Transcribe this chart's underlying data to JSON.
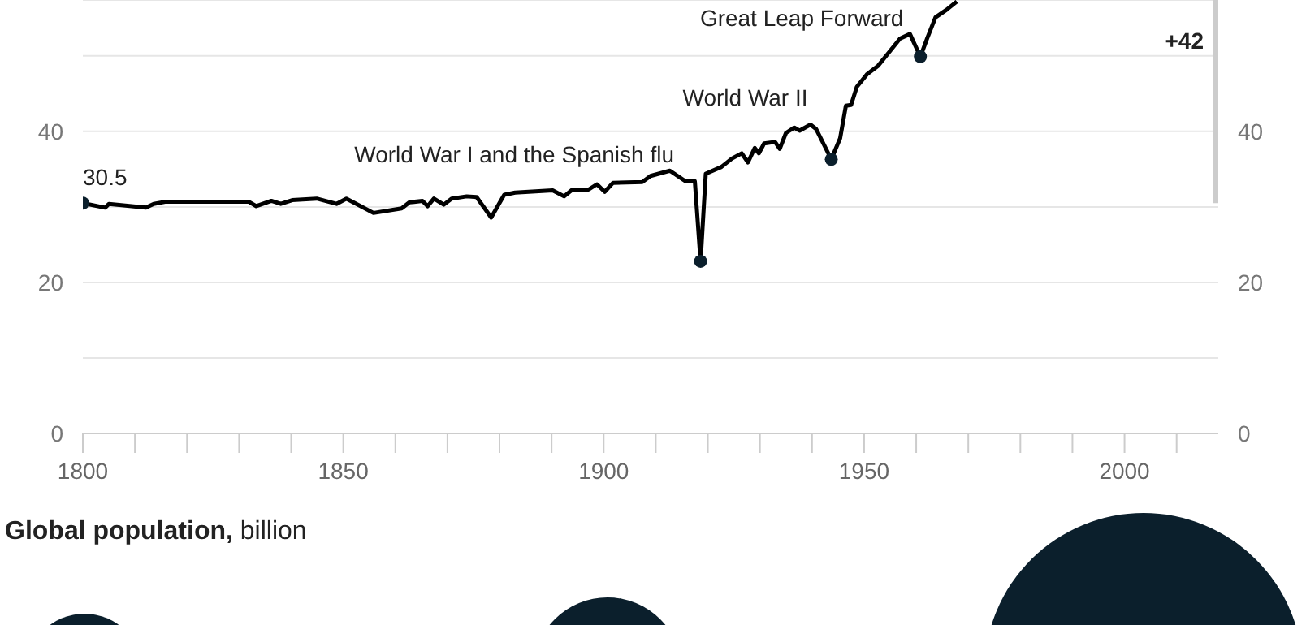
{
  "chart_data": [
    {
      "type": "line",
      "xlim": [
        1800,
        2018
      ],
      "xticks": [
        1800,
        {
          "value": 1810,
          "label": null
        },
        {
          "value": 1820,
          "label": null
        },
        {
          "value": 1830,
          "label": null
        },
        {
          "value": 1840,
          "label": null
        },
        1850,
        {
          "value": 1860,
          "label": null
        },
        {
          "value": 1870,
          "label": null
        },
        {
          "value": 1880,
          "label": null
        },
        {
          "value": 1890,
          "label": null
        },
        1900,
        {
          "value": 1910,
          "label": null
        },
        {
          "value": 1920,
          "label": null
        },
        {
          "value": 1930,
          "label": null
        },
        {
          "value": 1940,
          "label": null
        },
        1950,
        {
          "value": 1960,
          "label": null
        },
        {
          "value": 1970,
          "label": null
        },
        {
          "value": 1980,
          "label": null
        },
        {
          "value": 1990,
          "label": null
        },
        2000,
        {
          "value": 2010,
          "label": null
        }
      ],
      "ylim": [
        0,
        57.4
      ],
      "yticks": [
        0,
        {
          "value": 10,
          "label": null
        },
        20,
        {
          "value": 30,
          "label": null
        },
        40,
        {
          "value": 50,
          "label": null
        }
      ],
      "y2lim": [
        0,
        57.4
      ],
      "y2ticks": [
        0,
        {
          "value": 10,
          "label": null
        },
        20,
        {
          "value": 30,
          "label": null
        },
        40,
        {
          "value": 50,
          "label": null
        }
      ],
      "grid": "y",
      "line_style": "solid",
      "series": [
        {
          "type": "line",
          "color": "#000000",
          "marker": "none",
          "x": [
            1800,
            1804.3,
            1805,
            1812.1,
            1813.6,
            1816,
            1831.8,
            1833.3,
            1836.2,
            1838,
            1840.2,
            1844.9,
            1848.7,
            1850.6,
            1855.8,
            1861.2,
            1862.7,
            1865.2,
            1866.2,
            1867.4,
            1869.3,
            1870.8,
            1873.7,
            1875.6,
            1878.4,
            1880.9,
            1883,
            1890.2,
            1892.4,
            1894,
            1897.1,
            1898.7,
            1900.2,
            1901.8,
            1907.4,
            1909,
            1912.7,
            1915.7,
            1917.5,
            1918.6,
            1919.6,
            1922.6,
            1924.6,
            1926.5,
            1927.7,
            1929,
            1929.8,
            1930.8,
            1932.9,
            1933.8,
            1935,
            1936.6,
            1937.6,
            1939.7,
            1940.8,
            1943.7,
            1945.4,
            1946.5,
            1947.5,
            1948.6,
            1950.6,
            1952.7,
            1954.8,
            1956.9,
            1958.8,
            1960.8,
            1962.1,
            1963.7,
            1965.8,
            1967.8
          ],
          "values": [
            30.5,
            29.9,
            30.4,
            29.9,
            30.4,
            30.7,
            30.7,
            30.1,
            30.8,
            30.4,
            30.9,
            31.1,
            30.4,
            31.1,
            29.2,
            29.8,
            30.6,
            30.8,
            30.1,
            31.1,
            30.3,
            31.1,
            31.4,
            31.3,
            28.6,
            31.6,
            31.9,
            32.2,
            31.4,
            32.3,
            32.3,
            33.0,
            32.0,
            33.2,
            33.3,
            34.1,
            34.8,
            33.4,
            33.4,
            22.8,
            34.4,
            35.3,
            36.4,
            37.1,
            35.9,
            37.8,
            37.1,
            38.4,
            38.6,
            37.7,
            39.8,
            40.5,
            40.1,
            40.9,
            40.3,
            36.3,
            39.1,
            43.4,
            43.5,
            45.9,
            47.6,
            48.7,
            50.5,
            52.3,
            52.9,
            49.9,
            52.3,
            55.1,
            56.1,
            57.2
          ]
        },
        {
          "type": "scatter",
          "color": "#0b1f2c",
          "marker": "circle",
          "x": [
            1800,
            1918.6,
            1943.7,
            1960.8
          ],
          "values": [
            30.5,
            22.8,
            36.3,
            49.9
          ]
        }
      ],
      "annotations": [
        {
          "text": "30.5",
          "x": 1800,
          "y": 30.5
        },
        "World War I and the Spanish flu",
        {
          "text": "World War II",
          "x": 1943.7,
          "y": 36.3
        },
        {
          "text": "Great Leap Forward",
          "x": 1960.8,
          "y": 49.9
        },
        "+42"
      ]
    },
    {
      "type": "other",
      "title": "Global population, billion"
    }
  ]
}
